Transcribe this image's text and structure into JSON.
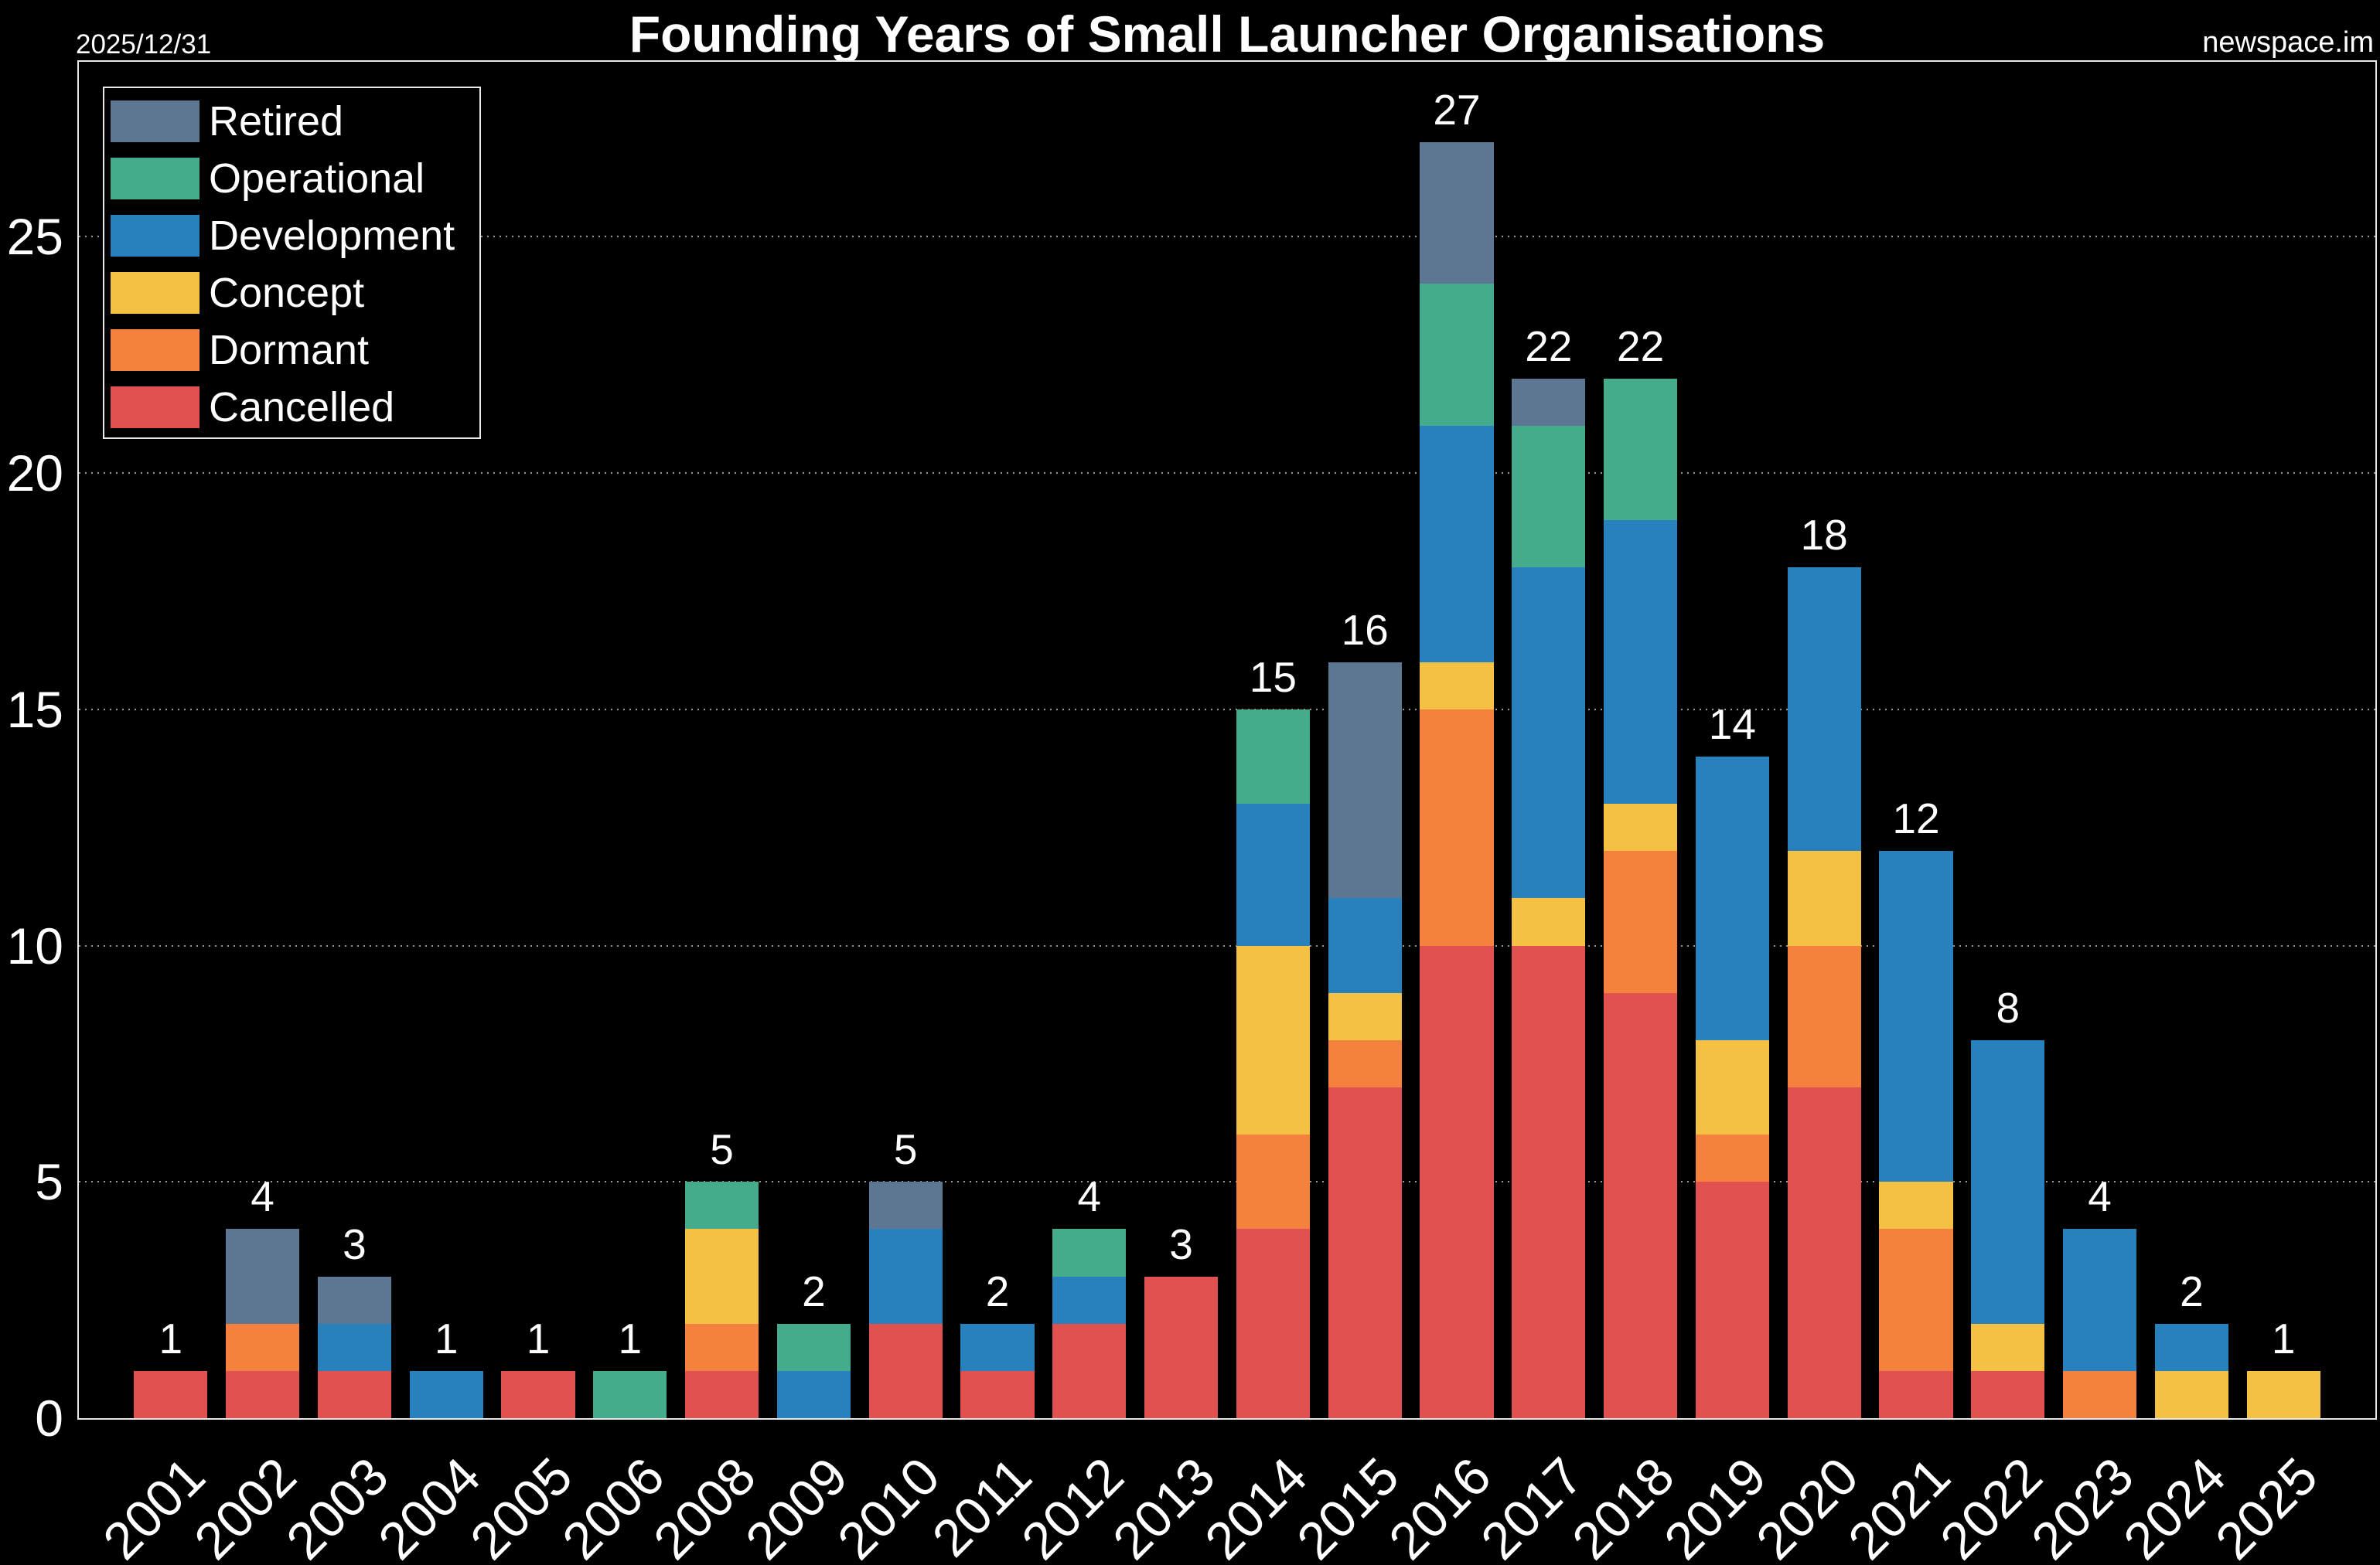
{
  "header": {
    "date": "2025/12/31",
    "title": "Founding Years of Small Launcher Organisations",
    "source": "newspace.im"
  },
  "chart_data": {
    "type": "bar",
    "stacked": true,
    "title": "Founding Years of Small Launcher Organisations",
    "xlabel": "",
    "ylabel": "",
    "background_color": "#000000",
    "text_color": "#ffffff",
    "grid": "horizontal dotted",
    "legend_position": "upper left",
    "yticks": [
      0,
      5,
      10,
      15,
      20,
      25
    ],
    "ylim": [
      0,
      28.7
    ],
    "categories": [
      "2001",
      "2002",
      "2003",
      "2004",
      "2005",
      "2006",
      "2008",
      "2009",
      "2010",
      "2011",
      "2012",
      "2013",
      "2014",
      "2015",
      "2016",
      "2017",
      "2018",
      "2019",
      "2020",
      "2021",
      "2022",
      "2023",
      "2024",
      "2025"
    ],
    "totals": [
      1,
      4,
      3,
      1,
      1,
      1,
      5,
      2,
      5,
      2,
      4,
      3,
      15,
      16,
      27,
      22,
      22,
      14,
      18,
      12,
      8,
      4,
      2,
      1
    ],
    "series": [
      {
        "name": "Cancelled",
        "color": "#e0514f",
        "values": [
          1,
          1,
          1,
          0,
          1,
          0,
          1,
          0,
          2,
          1,
          2,
          3,
          4,
          7,
          10,
          10,
          9,
          5,
          7,
          1,
          1,
          0,
          0,
          0
        ]
      },
      {
        "name": "Dormant",
        "color": "#f5813f",
        "values": [
          0,
          1,
          0,
          0,
          0,
          0,
          1,
          0,
          0,
          0,
          0,
          0,
          2,
          1,
          5,
          0,
          3,
          1,
          3,
          3,
          0,
          1,
          0,
          0
        ]
      },
      {
        "name": "Concept",
        "color": "#f5c145",
        "values": [
          0,
          0,
          0,
          0,
          0,
          0,
          2,
          0,
          0,
          0,
          0,
          0,
          4,
          1,
          1,
          1,
          1,
          2,
          2,
          1,
          1,
          0,
          1,
          1
        ]
      },
      {
        "name": "Development",
        "color": "#2781bd",
        "values": [
          0,
          0,
          1,
          1,
          0,
          0,
          0,
          1,
          2,
          1,
          1,
          0,
          3,
          2,
          5,
          7,
          6,
          6,
          6,
          7,
          6,
          3,
          1,
          0
        ]
      },
      {
        "name": "Operational",
        "color": "#44ab8c",
        "values": [
          0,
          0,
          0,
          0,
          0,
          1,
          1,
          1,
          0,
          0,
          1,
          0,
          2,
          0,
          3,
          3,
          3,
          0,
          0,
          0,
          0,
          0,
          0,
          0
        ]
      },
      {
        "name": "Retired",
        "color": "#5d7793",
        "values": [
          0,
          2,
          1,
          0,
          0,
          0,
          0,
          0,
          1,
          0,
          0,
          0,
          0,
          5,
          3,
          1,
          0,
          0,
          0,
          0,
          0,
          0,
          0,
          0
        ]
      }
    ],
    "legend_order": [
      "Retired",
      "Operational",
      "Development",
      "Concept",
      "Dormant",
      "Cancelled"
    ]
  }
}
